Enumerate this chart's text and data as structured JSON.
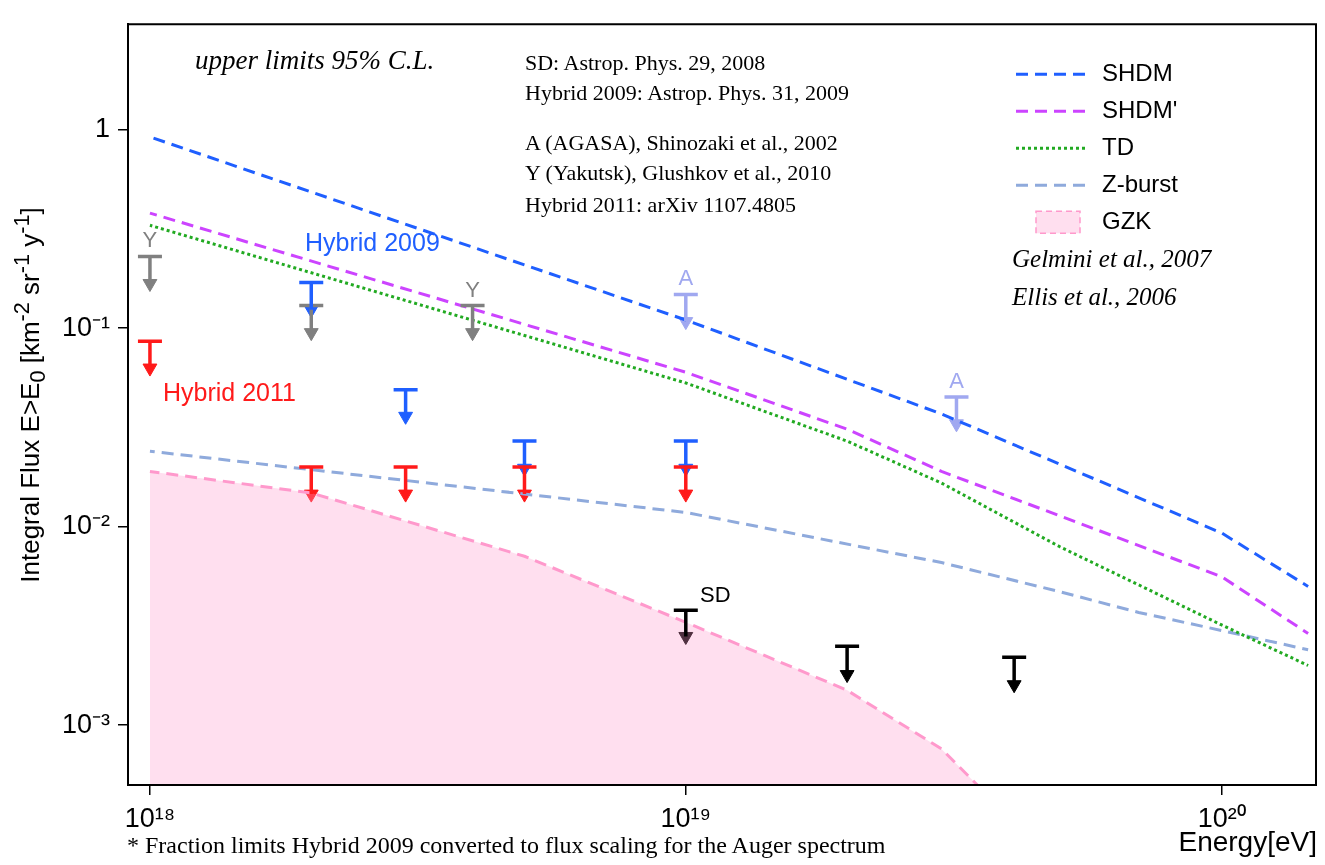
{
  "chart_data": {
    "type": "line",
    "log": "xy",
    "xlabel": "Energy[eV]",
    "ylabel": "Integral Flux E>E$_{0}$ [km$^{-2}$ sr$^{-1}$ y$^{-1}$]",
    "xlim": [
      9.1e+17,
      1.5e+20
    ],
    "xticks": [
      {
        "value": 1e+18,
        "label": "10¹⁸"
      },
      {
        "value": 1e+19,
        "label": "10¹⁹"
      },
      {
        "value": 1e+20,
        "label": "10²⁰"
      }
    ],
    "ylim": [
      0.0005,
      3.4
    ],
    "yticks": [
      {
        "value": 0.001,
        "label": "10⁻³"
      },
      {
        "value": 0.01,
        "label": "10⁻²"
      },
      {
        "value": 0.1,
        "label": "10⁻¹"
      },
      1
    ],
    "grid": false,
    "legend": "top right",
    "series": [
      {
        "name": "SHDM",
        "color": "#1f5fff",
        "line_style": "dashed",
        "x": [
          1e+18,
          1e+19,
          3e+19,
          1e+20,
          1.45e+20
        ],
        "values": [
          0.92,
          0.11,
          0.037,
          0.0093,
          0.005
        ]
      },
      {
        "name": "SHDM'",
        "color": "#cc44ff",
        "line_style": "dashed",
        "x": [
          1e+18,
          1e+19,
          2e+19,
          3e+19,
          1e+20,
          1.45e+20
        ],
        "values": [
          0.38,
          0.06,
          0.031,
          0.019,
          0.0056,
          0.0029
        ]
      },
      {
        "name": "TD",
        "color": "#22aa22",
        "line_style": "dotted",
        "x": [
          1e+18,
          1e+19,
          2e+19,
          3e+19,
          5e+19,
          1e+20,
          1.45e+20
        ],
        "values": [
          0.33,
          0.053,
          0.027,
          0.0166,
          0.0079,
          0.0032,
          0.002
        ]
      },
      {
        "name": "Z-burst",
        "color": "#8faadc",
        "line_style": "dashed",
        "x": [
          1e+18,
          1e+19,
          3e+19,
          5e+19,
          7e+19,
          1e+20,
          1.45e+20
        ],
        "values": [
          0.024,
          0.0118,
          0.0066,
          0.0047,
          0.0037,
          0.003,
          0.0024
        ]
      },
      {
        "name": "GZK",
        "type": "area",
        "color": "#ff99cc",
        "line_style": "dashed",
        "x": [
          1e+18,
          2e+18,
          5e+18,
          1e+19,
          2e+19,
          3e+19,
          3.5e+19
        ],
        "values": [
          0.019,
          0.0148,
          0.0071,
          0.0033,
          0.0015,
          0.00076,
          0.0005
        ]
      },
      {
        "type": "scatter",
        "marker": "triangle",
        "color": "#808080",
        "x": [
          1e+18,
          2e+18,
          4e+18
        ],
        "values": [
          0.168,
          0.095,
          0.095
        ],
        "errors": [
          [
            0.168,
            0.23
          ],
          [
            0.095,
            0.13
          ],
          [
            0.095,
            0.13
          ]
        ]
      },
      {
        "type": "scatter",
        "marker": "triangle",
        "color": "#1f5fff",
        "x": [
          2e+18,
          3e+18,
          5e+18,
          1e+19
        ],
        "values": [
          0.124,
          0.036,
          0.0197,
          0.0197
        ],
        "errors": [
          [
            0.124,
            0.17
          ],
          [
            0.036,
            0.049
          ],
          [
            0.0197,
            0.027
          ],
          [
            0.0197,
            0.027
          ]
        ]
      },
      {
        "type": "scatter",
        "marker": "triangle",
        "color": "#ff1a1a",
        "x": [
          1e+18,
          2e+18,
          3e+18,
          5e+18,
          1e+19
        ],
        "values": [
          0.063,
          0.0146,
          0.0146,
          0.0146,
          0.0146
        ],
        "errors": [
          [
            0.063,
            0.086
          ],
          [
            0.0146,
            0.02
          ],
          [
            0.0146,
            0.02
          ],
          [
            0.0146,
            0.02
          ],
          [
            0.0146,
            0.02
          ]
        ]
      },
      {
        "type": "scatter",
        "marker": "triangle",
        "color": "#a0a8f0",
        "x": [
          1e+19,
          3.2e+19
        ],
        "values": [
          0.108,
          0.033
        ],
        "errors": [
          [
            0.108,
            0.148
          ],
          [
            0.033,
            0.045
          ]
        ]
      },
      {
        "type": "scatter",
        "marker": "triangle",
        "color": "#000000",
        "x": [
          1e+19,
          2e+19,
          4.1e+19
        ],
        "values": [
          0.0028,
          0.0018,
          0.0016
        ],
        "errors": [
          [
            0.0028,
            0.0038
          ],
          [
            0.0018,
            0.0025
          ],
          [
            0.0016,
            0.0022
          ]
        ]
      }
    ],
    "annotations": [
      "upper limits 95% C.L.",
      "SD:  Astrop. Phys. 29, 2008",
      "Hybrid 2009: Astrop. Phys. 31, 2009",
      "A (AGASA), Shinozaki et al., 2002",
      "Y (Yakutsk), Glushkov et al.,  2010",
      "Hybrid 2011: arXiv 1107.4805",
      "Gelmini et al., 2007",
      "Ellis et al., 2006",
      "* Fraction limits Hybrid 2009 converted to flux scaling for the Auger spectrum",
      "Hybrid 2009",
      "Hybrid 2011",
      "SD",
      {
        "text": "Y",
        "x": 1e+18,
        "y": 0.23
      },
      {
        "text": "Y",
        "x": 4e+18,
        "y": 0.13
      },
      {
        "text": "A",
        "x": 1e+19,
        "y": 0.148
      },
      {
        "text": "A",
        "x": 3.2e+19,
        "y": 0.045
      }
    ]
  }
}
